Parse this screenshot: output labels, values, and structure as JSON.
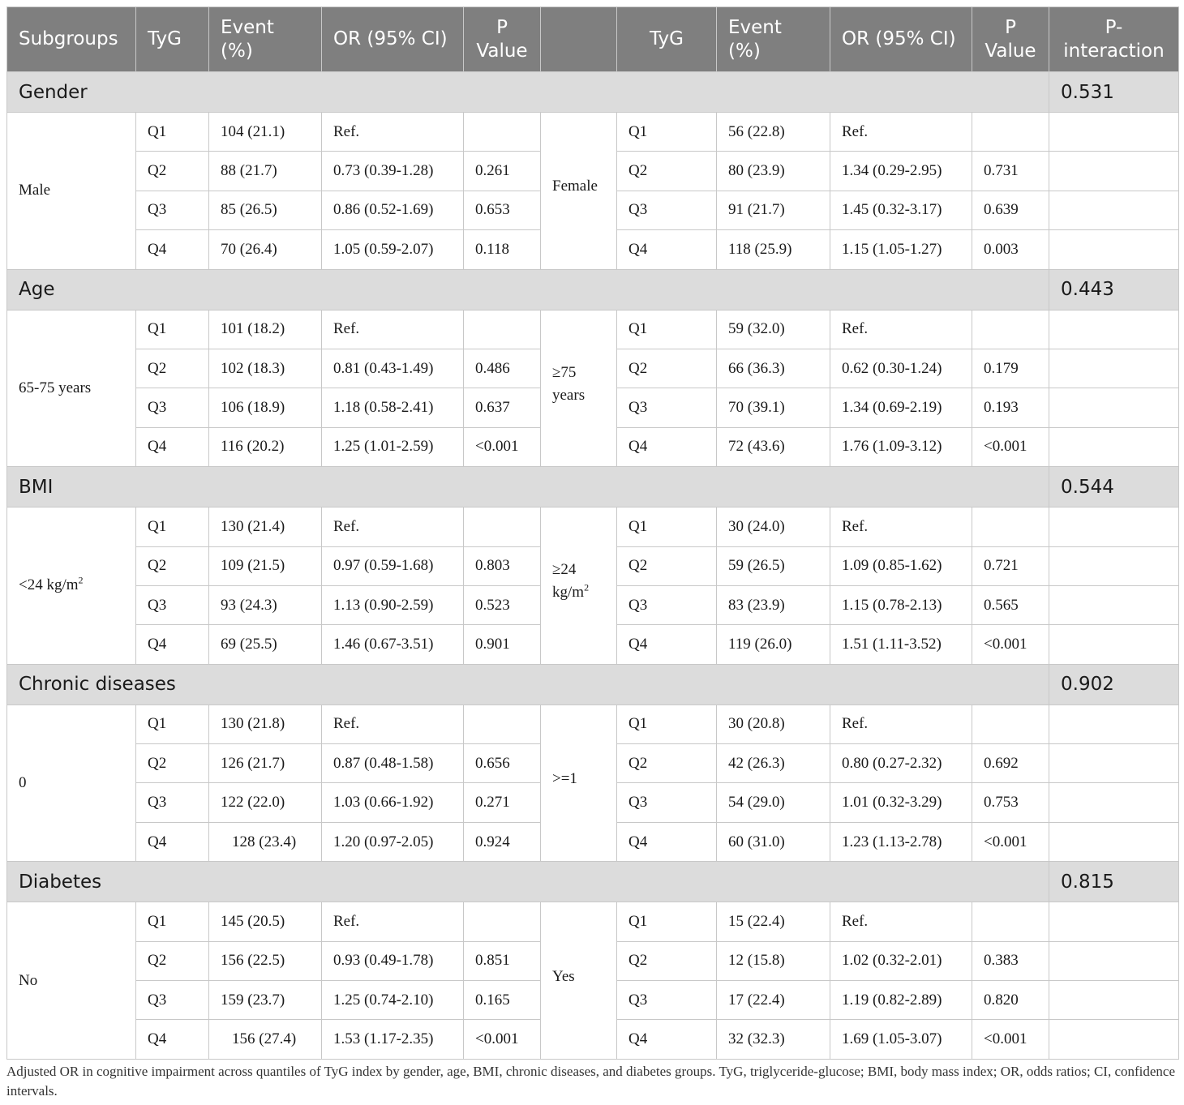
{
  "header": [
    "Subgroups",
    "TyG",
    "Event (%)",
    "OR (95% CI)",
    "P Value",
    "",
    "TyG",
    "Event (%)",
    "OR (95% CI)",
    "P Value",
    "P-interaction"
  ],
  "groups": [
    {
      "name": "Gender",
      "p_interaction": "0.531",
      "left_label": "Male",
      "left_label_sup": "",
      "right_label": "Female",
      "right_label_sup": "",
      "rows": [
        {
          "q": "Q1",
          "ev": "104 (21.1)",
          "or": "Ref.",
          "p": "",
          "q2": "Q1",
          "ev2": "56 (22.8)",
          "or2": "Ref.",
          "p2": ""
        },
        {
          "q": "Q2",
          "ev": "88 (21.7)",
          "or": "0.73 (0.39-1.28)",
          "p": "0.261",
          "q2": "Q2",
          "ev2": "80 (23.9)",
          "or2": "1.34 (0.29-2.95)",
          "p2": "0.731"
        },
        {
          "q": "Q3",
          "ev": "85 (26.5)",
          "or": "0.86 (0.52-1.69)",
          "p": "0.653",
          "q2": "Q3",
          "ev2": "91 (21.7)",
          "or2": "1.45 (0.32-3.17)",
          "p2": "0.639"
        },
        {
          "q": "Q4",
          "ev": "70 (26.4)",
          "or": "1.05 (0.59-2.07)",
          "p": "0.118",
          "q2": "Q4",
          "ev2": "118 (25.9)",
          "or2": "1.15 (1.05-1.27)",
          "p2": "0.003"
        }
      ]
    },
    {
      "name": "Age",
      "p_interaction": "0.443",
      "left_label": "65-75 years",
      "left_label_sup": "",
      "right_label": "≥75 years",
      "right_label_sup": "",
      "rows": [
        {
          "q": "Q1",
          "ev": "101 (18.2)",
          "or": "Ref.",
          "p": "",
          "q2": "Q1",
          "ev2": "59 (32.0)",
          "or2": "Ref.",
          "p2": ""
        },
        {
          "q": "Q2",
          "ev": "102 (18.3)",
          "or": "0.81 (0.43-1.49)",
          "p": "0.486",
          "q2": "Q2",
          "ev2": "66 (36.3)",
          "or2": "0.62 (0.30-1.24)",
          "p2": "0.179"
        },
        {
          "q": "Q3",
          "ev": "106 (18.9)",
          "or": "1.18 (0.58-2.41)",
          "p": "0.637",
          "q2": "Q3",
          "ev2": "70 (39.1)",
          "or2": "1.34 (0.69-2.19)",
          "p2": "0.193"
        },
        {
          "q": "Q4",
          "ev": "116 (20.2)",
          "or": "1.25 (1.01-2.59)",
          "p": "<0.001",
          "q2": "Q4",
          "ev2": "72 (43.6)",
          "or2": "1.76 (1.09-3.12)",
          "p2": "<0.001"
        }
      ]
    },
    {
      "name": "BMI",
      "p_interaction": "0.544",
      "left_label": "<24 kg/m",
      "left_label_sup": "2",
      "right_label": "≥24 kg/m",
      "right_label_sup": "2",
      "rows": [
        {
          "q": "Q1",
          "ev": "130 (21.4)",
          "or": "Ref.",
          "p": "",
          "q2": "Q1",
          "ev2": "30 (24.0)",
          "or2": "Ref.",
          "p2": ""
        },
        {
          "q": "Q2",
          "ev": "109 (21.5)",
          "or": "0.97 (0.59-1.68)",
          "p": "0.803",
          "q2": "Q2",
          "ev2": "59 (26.5)",
          "or2": "1.09 (0.85-1.62)",
          "p2": "0.721"
        },
        {
          "q": "Q3",
          "ev": "93 (24.3)",
          "or": "1.13 (0.90-2.59)",
          "p": "0.523",
          "q2": "Q3",
          "ev2": "83 (23.9)",
          "or2": "1.15 (0.78-2.13)",
          "p2": "0.565"
        },
        {
          "q": "Q4",
          "ev": "69 (25.5)",
          "or": "1.46 (0.67-3.51)",
          "p": "0.901",
          "q2": "Q4",
          "ev2": "119 (26.0)",
          "or2": "1.51 (1.11-3.52)",
          "p2": "<0.001"
        }
      ]
    },
    {
      "name": "Chronic diseases",
      "p_interaction": "0.902",
      "left_label": "0",
      "left_label_sup": "",
      "right_label": ">=1",
      "right_label_sup": "",
      "rows": [
        {
          "q": "Q1",
          "ev": "130 (21.8)",
          "or": "Ref.",
          "p": "",
          "q2": "Q1",
          "ev2": "30 (20.8)",
          "or2": "Ref.",
          "p2": ""
        },
        {
          "q": "Q2",
          "ev": "126 (21.7)",
          "or": "0.87 (0.48-1.58)",
          "p": "0.656",
          "q2": "Q2",
          "ev2": "42 (26.3)",
          "or2": "0.80 (0.27-2.32)",
          "p2": "0.692"
        },
        {
          "q": "Q3",
          "ev": "122 (22.0)",
          "or": "1.03 (0.66-1.92)",
          "p": "0.271",
          "q2": "Q3",
          "ev2": "54 (29.0)",
          "or2": "1.01 (0.32-3.29)",
          "p2": "0.753"
        },
        {
          "q": "Q4",
          "ev": "128 (23.4)",
          "or": "1.20 (0.97-2.05)",
          "p": "0.924",
          "q2": "Q4",
          "ev2": "60 (31.0)",
          "or2": "1.23 (1.13-2.78)",
          "p2": "<0.001"
        }
      ]
    },
    {
      "name": "Diabetes",
      "p_interaction": "0.815",
      "left_label": "No",
      "left_label_sup": "",
      "right_label": "Yes",
      "right_label_sup": "",
      "rows": [
        {
          "q": "Q1",
          "ev": "145 (20.5)",
          "or": "Ref.",
          "p": "",
          "q2": "Q1",
          "ev2": "15 (22.4)",
          "or2": "Ref.",
          "p2": ""
        },
        {
          "q": "Q2",
          "ev": "156 (22.5)",
          "or": "0.93 (0.49-1.78)",
          "p": "0.851",
          "q2": "Q2",
          "ev2": "12 (15.8)",
          "or2": "1.02 (0.32-2.01)",
          "p2": "0.383"
        },
        {
          "q": "Q3",
          "ev": "159 (23.7)",
          "or": "1.25 (0.74-2.10)",
          "p": "0.165",
          "q2": "Q3",
          "ev2": "17 (22.4)",
          "or2": "1.19 (0.82-2.89)",
          "p2": "0.820"
        },
        {
          "q": "Q4",
          "ev": "156 (27.4)",
          "or": "1.53 (1.17-2.35)",
          "p": "<0.001",
          "q2": "Q4",
          "ev2": "32 (32.3)",
          "or2": "1.69 (1.05-3.07)",
          "p2": "<0.001"
        }
      ]
    }
  ],
  "footnote": "Adjusted OR in cognitive impairment across quantiles of TyG index by gender, age, BMI, chronic diseases, and diabetes groups. TyG, triglyceride-glucose; BMI, body mass index; OR, odds ratios; CI, confidence intervals."
}
